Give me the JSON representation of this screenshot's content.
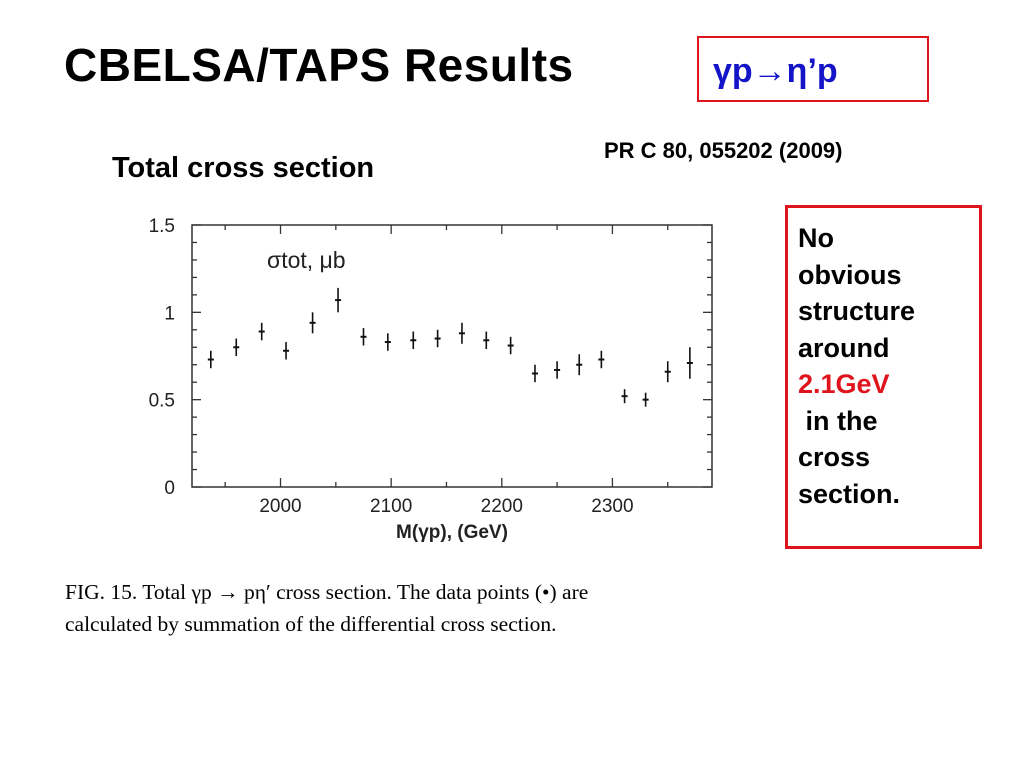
{
  "slide": {
    "title": "CBELSA/TAPS  Results",
    "reaction": "γp→η’p",
    "reference": "PR C 80, 055202 (2009)",
    "subtitle": "Total cross section",
    "note": {
      "lines": [
        "No",
        "obvious",
        "structure",
        "around"
      ],
      "highlight": "2.1GeV",
      "lines_after": [
        " in the",
        "cross",
        "section."
      ]
    },
    "caption": [
      "FIG. 15.  Total γp → pη′ cross section. The data points (•) are",
      "calculated by summation of the differential cross section."
    ]
  },
  "colors": {
    "accent_red": "#e0141c",
    "reaction_blue": "#1414c8"
  },
  "chart_data": {
    "type": "scatter",
    "title": "",
    "inner_label": "σtot, μb",
    "xlabel": "M(γp), (GeV)",
    "ylabel": "",
    "xlim": [
      1920,
      2390
    ],
    "ylim": [
      0,
      1.5
    ],
    "x_ticks": [
      2000,
      2100,
      2200,
      2300
    ],
    "y_ticks": [
      0,
      0.5,
      1,
      1.5
    ],
    "y_tick_labels": [
      "0",
      "0.5",
      "1",
      "1.5"
    ],
    "grid": false,
    "legend": "none",
    "points": [
      {
        "x": 1937,
        "y": 0.73,
        "err": 0.05
      },
      {
        "x": 1960,
        "y": 0.8,
        "err": 0.05
      },
      {
        "x": 1983,
        "y": 0.89,
        "err": 0.05
      },
      {
        "x": 2005,
        "y": 0.78,
        "err": 0.05
      },
      {
        "x": 2029,
        "y": 0.94,
        "err": 0.06
      },
      {
        "x": 2052,
        "y": 1.07,
        "err": 0.07
      },
      {
        "x": 2075,
        "y": 0.86,
        "err": 0.05
      },
      {
        "x": 2097,
        "y": 0.83,
        "err": 0.05
      },
      {
        "x": 2120,
        "y": 0.84,
        "err": 0.05
      },
      {
        "x": 2142,
        "y": 0.85,
        "err": 0.05
      },
      {
        "x": 2164,
        "y": 0.88,
        "err": 0.06
      },
      {
        "x": 2186,
        "y": 0.84,
        "err": 0.05
      },
      {
        "x": 2208,
        "y": 0.81,
        "err": 0.05
      },
      {
        "x": 2230,
        "y": 0.65,
        "err": 0.05
      },
      {
        "x": 2250,
        "y": 0.67,
        "err": 0.05
      },
      {
        "x": 2270,
        "y": 0.7,
        "err": 0.06
      },
      {
        "x": 2290,
        "y": 0.73,
        "err": 0.05
      },
      {
        "x": 2311,
        "y": 0.52,
        "err": 0.04
      },
      {
        "x": 2330,
        "y": 0.5,
        "err": 0.04
      },
      {
        "x": 2350,
        "y": 0.66,
        "err": 0.06
      },
      {
        "x": 2370,
        "y": 0.71,
        "err": 0.09
      }
    ]
  }
}
